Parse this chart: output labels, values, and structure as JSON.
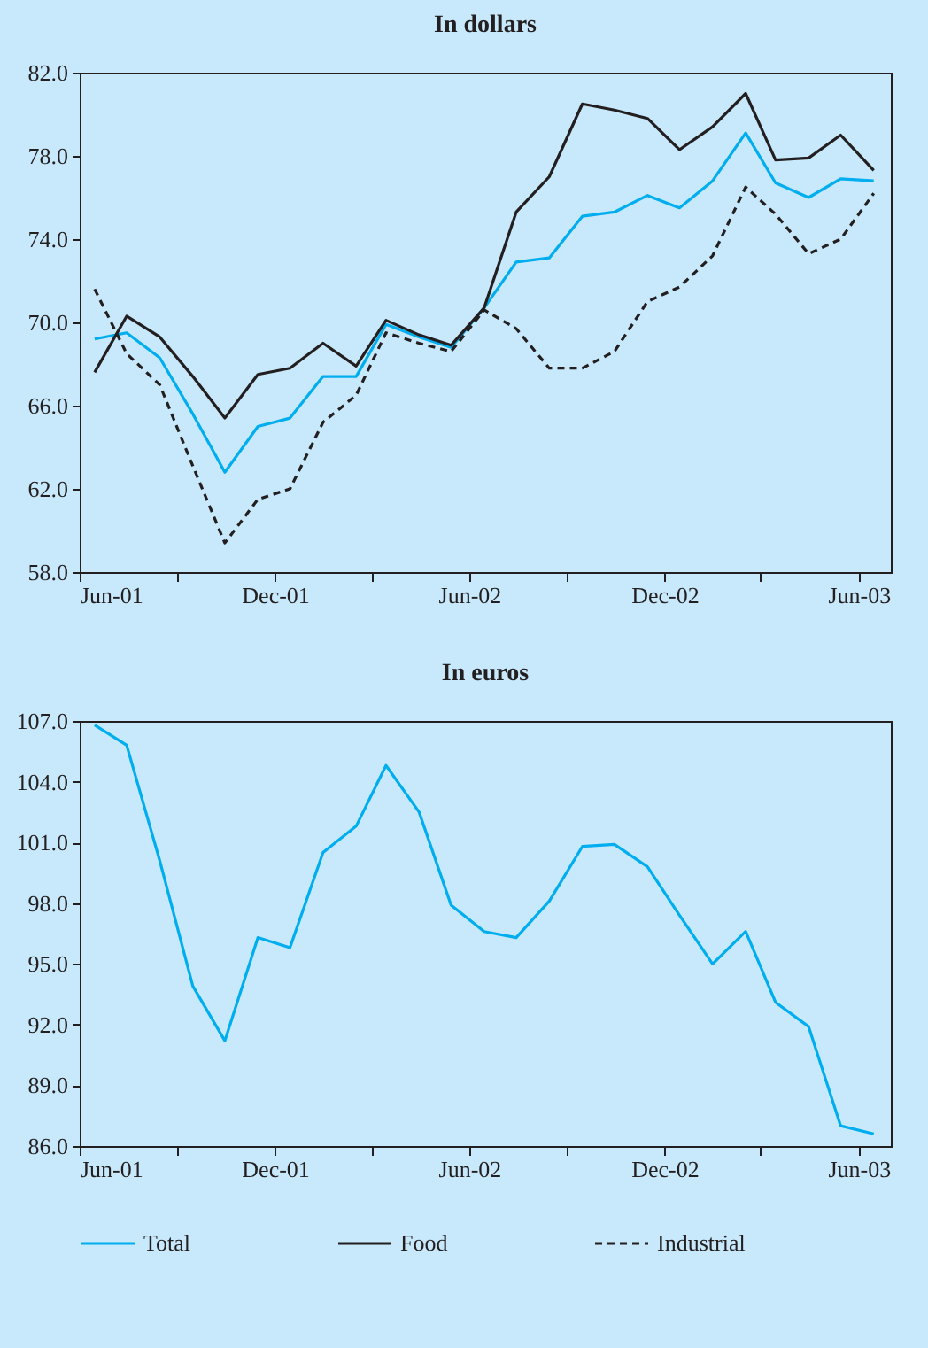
{
  "chart_data": [
    {
      "type": "line",
      "title": "In dollars",
      "legend": "bottom",
      "x": [
        "2001-06-15",
        "2001-07-15",
        "2001-08-15",
        "2001-09-15",
        "2001-10-15",
        "2001-11-15",
        "2001-12-15",
        "2002-01-15",
        "2002-02-15",
        "2002-03-15",
        "2002-04-15",
        "2002-05-15",
        "2002-06-15",
        "2002-07-15",
        "2002-08-15",
        "2002-09-15",
        "2002-10-15",
        "2002-11-15",
        "2002-12-15",
        "2003-01-15",
        "2003-02-15",
        "2003-03-15",
        "2003-04-15",
        "2003-05-15",
        "2003-06-15"
      ],
      "xlim": [
        "2001-06-01",
        "2003-07-01"
      ],
      "xticks": [
        {
          "value": "2001-06-01",
          "label": "Jun-01"
        },
        {
          "value": "2001-09-01",
          "label": null
        },
        {
          "value": "2001-12-01",
          "label": "Dec-01"
        },
        {
          "value": "2002-03-01",
          "label": null
        },
        {
          "value": "2002-06-01",
          "label": "Jun-02"
        },
        {
          "value": "2002-09-01",
          "label": null
        },
        {
          "value": "2002-12-01",
          "label": "Dec-02"
        },
        {
          "value": "2003-03-01",
          "label": null
        },
        {
          "value": "2003-06-01",
          "label": "Jun-03"
        }
      ],
      "ylim": [
        58,
        82
      ],
      "yticks": [
        {
          "value": 58,
          "label": "58.0"
        },
        {
          "value": 62,
          "label": "62.0"
        },
        {
          "value": 66,
          "label": "66.0"
        },
        {
          "value": 70,
          "label": "70.0"
        },
        {
          "value": 74,
          "label": "74.0"
        },
        {
          "value": 78,
          "label": "78.0"
        },
        {
          "value": 82,
          "label": "82.0"
        }
      ],
      "series": [
        {
          "name": "Total",
          "color": "#00aeef",
          "line_style": "solid",
          "values": [
            69.2,
            69.5,
            68.3,
            65.6,
            62.8,
            65.0,
            65.4,
            67.4,
            67.4,
            69.9,
            69.3,
            68.8,
            70.7,
            72.9,
            73.1,
            75.1,
            75.3,
            76.1,
            75.5,
            76.8,
            79.1,
            76.7,
            76.0,
            76.9,
            76.8
          ]
        },
        {
          "name": "Food",
          "color": "#231f20",
          "line_style": "solid",
          "values": [
            67.6,
            70.3,
            69.3,
            67.4,
            65.4,
            67.5,
            67.8,
            69.0,
            67.9,
            70.1,
            69.4,
            68.9,
            70.7,
            75.3,
            77.0,
            80.5,
            80.2,
            79.8,
            78.3,
            79.4,
            81.0,
            77.8,
            77.9,
            79.0,
            77.3
          ]
        },
        {
          "name": "Industrial",
          "color": "#231f20",
          "line_style": "dashed",
          "values": [
            71.6,
            68.5,
            67.0,
            63.1,
            59.4,
            61.5,
            62.0,
            65.2,
            66.5,
            69.5,
            69.0,
            68.6,
            70.6,
            69.7,
            67.8,
            67.8,
            68.6,
            71.0,
            71.7,
            73.2,
            76.5,
            75.2,
            73.3,
            74.0,
            76.2
          ]
        }
      ]
    },
    {
      "type": "line",
      "title": "In euros",
      "x": [
        "2001-06-15",
        "2001-07-15",
        "2001-08-15",
        "2001-09-15",
        "2001-10-15",
        "2001-11-15",
        "2001-12-15",
        "2002-01-15",
        "2002-02-15",
        "2002-03-15",
        "2002-04-15",
        "2002-05-15",
        "2002-06-15",
        "2002-07-15",
        "2002-08-15",
        "2002-09-15",
        "2002-10-15",
        "2002-11-15",
        "2002-12-15",
        "2003-01-15",
        "2003-02-15",
        "2003-03-15",
        "2003-04-15",
        "2003-05-15",
        "2003-06-15"
      ],
      "xlim": [
        "2001-06-01",
        "2003-07-01"
      ],
      "xticks": [
        {
          "value": "2001-06-01",
          "label": "Jun-01"
        },
        {
          "value": "2001-09-01",
          "label": null
        },
        {
          "value": "2001-12-01",
          "label": "Dec-01"
        },
        {
          "value": "2002-03-01",
          "label": null
        },
        {
          "value": "2002-06-01",
          "label": "Jun-02"
        },
        {
          "value": "2002-09-01",
          "label": null
        },
        {
          "value": "2002-12-01",
          "label": "Dec-02"
        },
        {
          "value": "2003-03-01",
          "label": null
        },
        {
          "value": "2003-06-01",
          "label": "Jun-03"
        }
      ],
      "ylim": [
        86,
        107
      ],
      "yticks": [
        {
          "value": 86,
          "label": "86.0"
        },
        {
          "value": 89,
          "label": "89.0"
        },
        {
          "value": 92,
          "label": "92.0"
        },
        {
          "value": 95,
          "label": "95.0"
        },
        {
          "value": 98,
          "label": "98.0"
        },
        {
          "value": 101,
          "label": "101.0"
        },
        {
          "value": 104,
          "label": "104.0"
        },
        {
          "value": 107,
          "label": "107.0"
        }
      ],
      "series": [
        {
          "name": "Total",
          "color": "#00aeef",
          "line_style": "solid",
          "values": [
            106.8,
            105.8,
            100.1,
            93.9,
            91.2,
            96.3,
            95.8,
            100.5,
            101.8,
            104.8,
            102.5,
            97.9,
            96.6,
            96.3,
            98.1,
            100.8,
            100.9,
            99.8,
            97.4,
            95.0,
            96.6,
            93.1,
            91.9,
            87.0,
            86.6
          ]
        }
      ]
    }
  ]
}
